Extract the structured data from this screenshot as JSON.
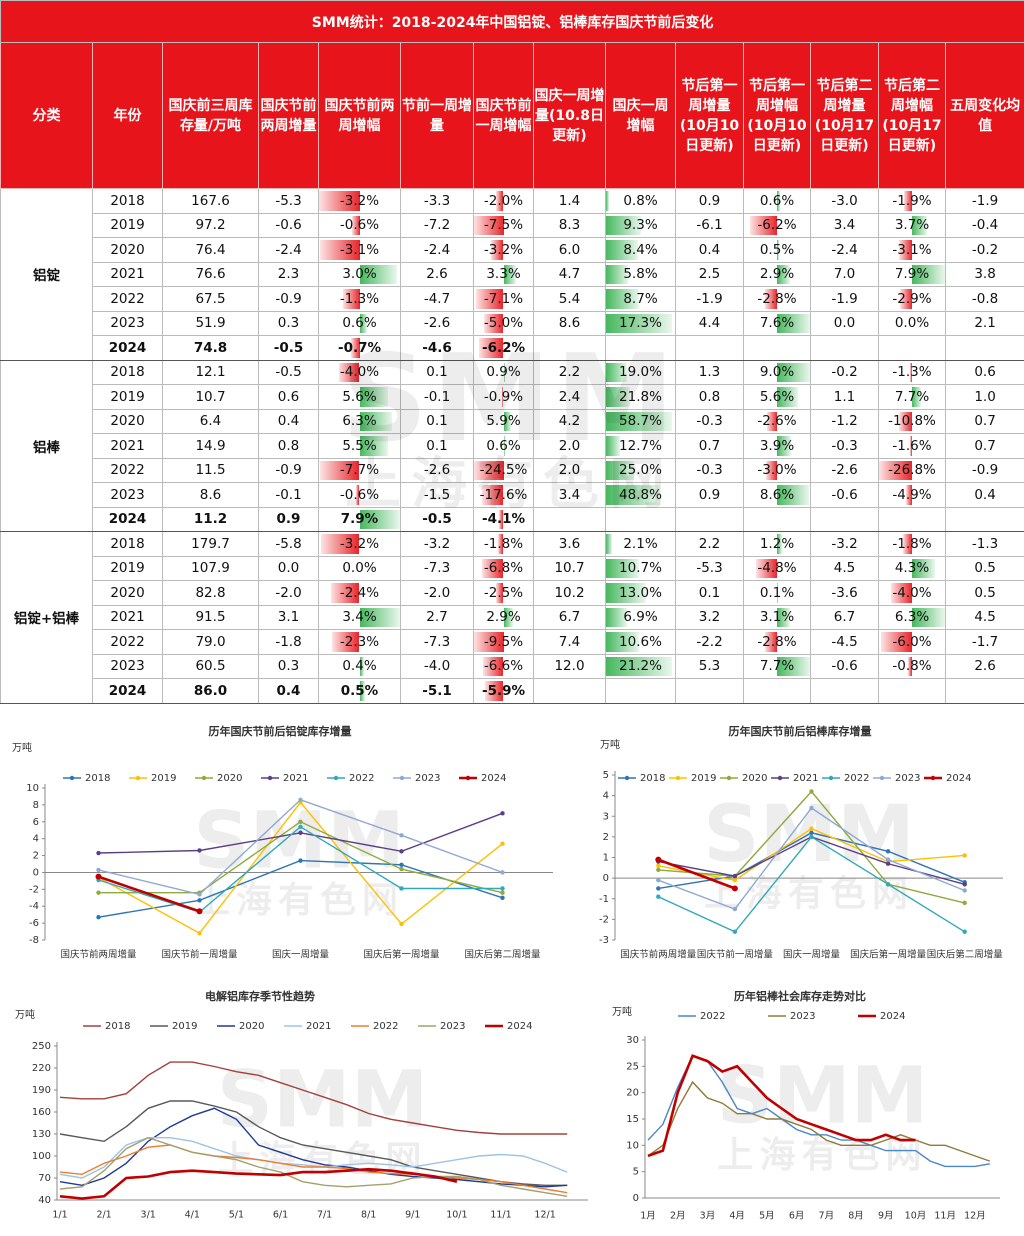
{
  "table": {
    "title": "SMM统计：2018-2024年中国铝锭、铝棒库存国庆节前后变化",
    "headers": [
      "分类",
      "年份",
      "国庆前三周库存量/万吨",
      "国庆节前两周增量",
      "国庆节前两周增幅",
      "节前一周增量",
      "国庆节前一周增幅",
      "国庆一周增量(10.8日更新)",
      "国庆一周增幅",
      "节后第一周增量(10月10日更新)",
      "节后第一周增幅(10月10日更新)",
      "节后第二周增量(10月17日更新)",
      "节后第二周增幅(10月17日更新)",
      "五周变化均值"
    ],
    "groups": [
      {
        "name": "铝锭",
        "rows": [
          [
            "2018",
            "167.6",
            "-5.3",
            "-3.2%",
            "-3.3",
            "-2.0%",
            "1.4",
            "0.8%",
            "0.9",
            "0.6%",
            "-3.0",
            "-1.9%",
            "-1.9"
          ],
          [
            "2019",
            "97.2",
            "-0.6",
            "-0.6%",
            "-7.2",
            "-7.5%",
            "8.3",
            "9.3%",
            "-6.1",
            "-6.2%",
            "3.4",
            "3.7%",
            "-0.4"
          ],
          [
            "2020",
            "76.4",
            "-2.4",
            "-3.1%",
            "-2.4",
            "-3.2%",
            "6.0",
            "8.4%",
            "0.4",
            "0.5%",
            "-2.4",
            "-3.1%",
            "-0.2"
          ],
          [
            "2021",
            "76.6",
            "2.3",
            "3.0%",
            "2.6",
            "3.3%",
            "4.7",
            "5.8%",
            "2.5",
            "2.9%",
            "7.0",
            "7.9%",
            "3.8"
          ],
          [
            "2022",
            "67.5",
            "-0.9",
            "-1.3%",
            "-4.7",
            "-7.1%",
            "5.4",
            "8.7%",
            "-1.9",
            "-2.8%",
            "-1.9",
            "-2.9%",
            "-0.8"
          ],
          [
            "2023",
            "51.9",
            "0.3",
            "0.6%",
            "-2.6",
            "-5.0%",
            "8.6",
            "17.3%",
            "4.4",
            "7.6%",
            "0.0",
            "0.0%",
            "2.1"
          ],
          [
            "2024",
            "74.8",
            "-0.5",
            "-0.7%",
            "-4.6",
            "-6.2%"
          ]
        ]
      },
      {
        "name": "铝棒",
        "rows": [
          [
            "2018",
            "12.1",
            "-0.5",
            "-4.0%",
            "0.1",
            "0.9%",
            "2.2",
            "19.0%",
            "1.3",
            "9.0%",
            "-0.2",
            "-1.3%",
            "0.6"
          ],
          [
            "2019",
            "10.7",
            "0.6",
            "5.6%",
            "-0.1",
            "-0.9%",
            "2.4",
            "21.8%",
            "0.8",
            "5.6%",
            "1.1",
            "7.7%",
            "1.0"
          ],
          [
            "2020",
            "6.4",
            "0.4",
            "6.3%",
            "0.1",
            "5.9%",
            "4.2",
            "58.7%",
            "-0.3",
            "-2.6%",
            "-1.2",
            "-10.8%",
            "0.7"
          ],
          [
            "2021",
            "14.9",
            "0.8",
            "5.5%",
            "0.1",
            "0.6%",
            "2.0",
            "12.7%",
            "0.7",
            "3.9%",
            "-0.3",
            "-1.6%",
            "0.7"
          ],
          [
            "2022",
            "11.5",
            "-0.9",
            "-7.7%",
            "-2.6",
            "-24.5%",
            "2.0",
            "25.0%",
            "-0.3",
            "-3.0%",
            "-2.6",
            "-26.8%",
            "-0.9"
          ],
          [
            "2023",
            "8.6",
            "-0.1",
            "-0.6%",
            "-1.5",
            "-17.6%",
            "3.4",
            "48.8%",
            "0.9",
            "8.6%",
            "-0.6",
            "-4.9%",
            "0.4"
          ],
          [
            "2024",
            "11.2",
            "0.9",
            "7.9%",
            "-0.5",
            "-4.1%"
          ]
        ]
      },
      {
        "name": "铝锭+铝棒",
        "rows": [
          [
            "2018",
            "179.7",
            "-5.8",
            "-3.2%",
            "-3.2",
            "-1.8%",
            "3.6",
            "2.1%",
            "2.2",
            "1.2%",
            "-3.2",
            "-1.8%",
            "-1.3"
          ],
          [
            "2019",
            "107.9",
            "0.0",
            "0.0%",
            "-7.3",
            "-6.8%",
            "10.7",
            "10.7%",
            "-5.3",
            "-4.8%",
            "4.5",
            "4.3%",
            "0.5"
          ],
          [
            "2020",
            "82.8",
            "-2.0",
            "-2.4%",
            "-2.0",
            "-2.5%",
            "10.2",
            "13.0%",
            "0.1",
            "0.1%",
            "-3.6",
            "-4.0%",
            "0.5"
          ],
          [
            "2021",
            "91.5",
            "3.1",
            "3.4%",
            "2.7",
            "2.9%",
            "6.7",
            "6.9%",
            "3.2",
            "3.1%",
            "6.7",
            "6.3%",
            "4.5"
          ],
          [
            "2022",
            "79.0",
            "-1.8",
            "-2.3%",
            "-7.3",
            "-9.5%",
            "7.4",
            "10.6%",
            "-2.2",
            "-2.8%",
            "-4.5",
            "-6.0%",
            "-1.7"
          ],
          [
            "2023",
            "60.5",
            "0.3",
            "0.4%",
            "-4.0",
            "-6.6%",
            "12.0",
            "21.2%",
            "5.3",
            "7.7%",
            "-0.6",
            "-0.8%",
            "2.6"
          ],
          [
            "2024",
            "86.0",
            "0.4",
            "0.5%",
            "-5.1",
            "-5.9%"
          ]
        ]
      }
    ]
  },
  "watermark": {
    "logo": "SMM",
    "text": "上海有色网"
  },
  "chart_data": [
    {
      "type": "line",
      "title": "历年国庆节前后铝锭库存增量",
      "unit": "万吨",
      "markers": true,
      "categories": [
        "国庆节前两周增量",
        "国庆节前一周增量",
        "国庆一周增量",
        "国庆后第一周增量",
        "国庆后第二周增量"
      ],
      "series": [
        {
          "name": "2018",
          "color": "#2e75b6",
          "values": [
            -5.3,
            -3.3,
            1.4,
            0.9,
            -3.0
          ]
        },
        {
          "name": "2019",
          "color": "#ffc000",
          "values": [
            -0.6,
            -7.2,
            8.3,
            -6.1,
            3.4
          ]
        },
        {
          "name": "2020",
          "color": "#8faa3c",
          "values": [
            -2.4,
            -2.4,
            6.0,
            0.4,
            -2.4
          ]
        },
        {
          "name": "2021",
          "color": "#5b3f86",
          "values": [
            2.3,
            2.6,
            4.7,
            2.5,
            7.0
          ]
        },
        {
          "name": "2022",
          "color": "#31a9b8",
          "values": [
            -0.9,
            -4.7,
            5.4,
            -1.9,
            -1.9
          ]
        },
        {
          "name": "2023",
          "color": "#8fa9d3",
          "values": [
            0.3,
            -2.6,
            8.6,
            4.4,
            0.0
          ]
        },
        {
          "name": "2024",
          "color": "#c00000",
          "values": [
            -0.5,
            -4.6,
            null,
            null,
            null
          ]
        }
      ],
      "ylim": [
        -8,
        10
      ],
      "yticks": [
        -8,
        -6,
        -4,
        -2,
        0,
        2,
        4,
        6,
        8,
        10
      ]
    },
    {
      "type": "line",
      "title": "历年国庆节前后铝棒库存增量",
      "unit": "万吨",
      "markers": true,
      "categories": [
        "国庆节前两周增量",
        "国庆节前一周增量",
        "国庆一周增量",
        "国庆后第一周增量",
        "国庆后第二周增量"
      ],
      "series": [
        {
          "name": "2018",
          "color": "#2e75b6",
          "values": [
            -0.5,
            0.1,
            2.2,
            1.3,
            -0.2
          ]
        },
        {
          "name": "2019",
          "color": "#ffc000",
          "values": [
            0.6,
            -0.1,
            2.4,
            0.8,
            1.1
          ]
        },
        {
          "name": "2020",
          "color": "#8faa3c",
          "values": [
            0.4,
            0.1,
            4.2,
            -0.3,
            -1.2
          ]
        },
        {
          "name": "2021",
          "color": "#5b3f86",
          "values": [
            0.8,
            0.1,
            2.0,
            0.7,
            -0.3
          ]
        },
        {
          "name": "2022",
          "color": "#31a9b8",
          "values": [
            -0.9,
            -2.6,
            2.0,
            -0.3,
            -2.6
          ]
        },
        {
          "name": "2023",
          "color": "#8fa9d3",
          "values": [
            -0.1,
            -1.5,
            3.4,
            0.9,
            -0.6
          ]
        },
        {
          "name": "2024",
          "color": "#c00000",
          "values": [
            0.9,
            -0.5,
            null,
            null,
            null
          ]
        }
      ],
      "ylim": [
        -3,
        5
      ],
      "yticks": [
        -3,
        -2,
        -1,
        0,
        1,
        2,
        3,
        4,
        5
      ]
    },
    {
      "type": "line",
      "title": "电解铝库存季节性趋势",
      "unit": "万吨",
      "markers": false,
      "categories": [
        "1/1",
        null,
        "2/1",
        null,
        "3/1",
        null,
        "4/1",
        null,
        "5/1",
        null,
        "6/1",
        null,
        "7/1",
        null,
        "8/1",
        null,
        "9/1",
        null,
        "10/1",
        null,
        "11/1",
        null,
        "12/1",
        null
      ],
      "series": [
        {
          "name": "2018",
          "color": "#a3403c",
          "values": [
            180,
            178,
            178,
            185,
            210,
            228,
            228,
            222,
            215,
            210,
            200,
            190,
            180,
            170,
            158,
            150,
            145,
            140,
            135,
            132,
            130,
            130,
            130,
            130
          ]
        },
        {
          "name": "2019",
          "color": "#595959",
          "values": [
            130,
            125,
            120,
            140,
            165,
            175,
            175,
            168,
            160,
            140,
            125,
            115,
            110,
            105,
            100,
            95,
            85,
            80,
            75,
            70,
            65,
            62,
            60,
            60
          ]
        },
        {
          "name": "2020",
          "color": "#1f3a93",
          "values": [
            65,
            60,
            70,
            90,
            120,
            140,
            155,
            165,
            150,
            115,
            105,
            95,
            88,
            85,
            80,
            75,
            72,
            70,
            68,
            65,
            62,
            60,
            58,
            60
          ]
        },
        {
          "name": "2021",
          "color": "#9dc3e6",
          "values": [
            75,
            70,
            85,
            115,
            125,
            125,
            120,
            110,
            100,
            95,
            90,
            88,
            85,
            88,
            90,
            88,
            85,
            90,
            95,
            100,
            102,
            100,
            90,
            78
          ]
        },
        {
          "name": "2022",
          "color": "#ed7d31",
          "values": [
            78,
            75,
            90,
            100,
            112,
            115,
            105,
            100,
            98,
            95,
            90,
            85,
            85,
            83,
            78,
            76,
            75,
            72,
            70,
            68,
            65,
            60,
            55,
            50
          ]
        },
        {
          "name": "2023",
          "color": "#a5a06b",
          "values": [
            55,
            58,
            80,
            110,
            125,
            115,
            105,
            100,
            95,
            85,
            78,
            65,
            60,
            58,
            60,
            62,
            70,
            72,
            72,
            68,
            60,
            55,
            50,
            45
          ]
        },
        {
          "name": "2024",
          "color": "#c00000",
          "values": [
            45,
            42,
            45,
            70,
            72,
            78,
            80,
            78,
            76,
            75,
            74,
            78,
            78,
            80,
            82,
            80,
            76,
            72,
            65,
            null,
            null,
            null,
            null,
            null
          ]
        }
      ],
      "ylim": [
        40,
        250
      ],
      "yticks": [
        40,
        70,
        100,
        130,
        160,
        190,
        220,
        250
      ]
    },
    {
      "type": "line",
      "title": "历年铝棒社会库存走势对比",
      "unit": "万吨",
      "markers": false,
      "categories": [
        "1月",
        null,
        "2月",
        null,
        "3月",
        null,
        "4月",
        null,
        "5月",
        null,
        "6月",
        null,
        "7月",
        null,
        "8月",
        null,
        "9月",
        null,
        "10月",
        null,
        "11月",
        null,
        "12月",
        null
      ],
      "series": [
        {
          "name": "2022",
          "color": "#4a86c8",
          "values": [
            11,
            14,
            21,
            27,
            26,
            22,
            17,
            16,
            17,
            15,
            13,
            12,
            12,
            11,
            11,
            10,
            9,
            9,
            9,
            7,
            6,
            6,
            6,
            6.5
          ]
        },
        {
          "name": "2023",
          "color": "#8c7b3a",
          "values": [
            8,
            10,
            17,
            22,
            19,
            18,
            16,
            16,
            15,
            15,
            14,
            13,
            11,
            10,
            10,
            10,
            11,
            12,
            11,
            10,
            10,
            9,
            8,
            7
          ]
        },
        {
          "name": "2024",
          "color": "#c00000",
          "values": [
            8,
            9,
            20,
            27,
            26,
            24,
            25,
            22,
            19,
            17,
            15,
            14,
            13,
            12,
            11,
            11,
            12,
            11,
            11,
            null,
            null,
            null,
            null,
            null
          ]
        }
      ],
      "ylim": [
        0,
        30
      ],
      "yticks": [
        0,
        5,
        10,
        15,
        20,
        25,
        30
      ]
    }
  ]
}
